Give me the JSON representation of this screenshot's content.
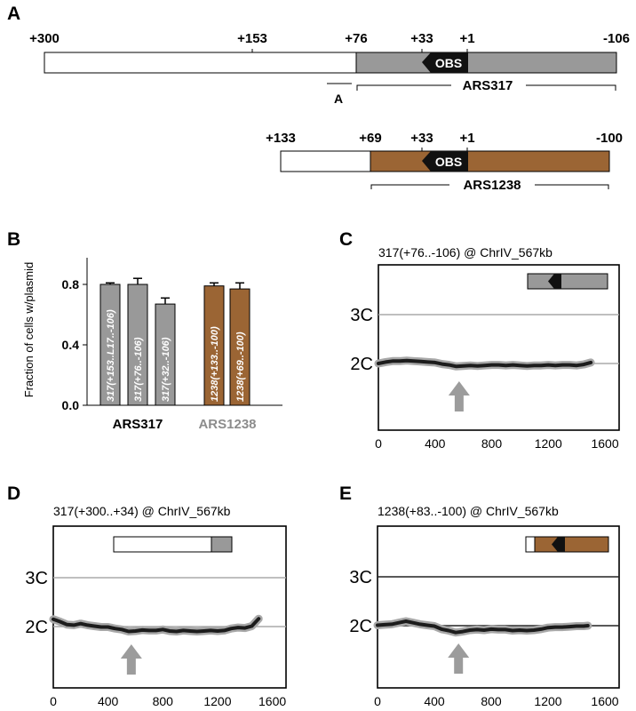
{
  "colors": {
    "grey": "#999999",
    "brown": "#9b6534",
    "dark": "#1a1a1a",
    "obs_fill": "#111111",
    "trace_halo": "#a8a8a8",
    "trace": "#1c1c1c",
    "arrow": "#9c9c9c",
    "hline_grey": "#aaaaaa",
    "hline_dark": "#222222",
    "ars1238_label": "#8c8c8c"
  },
  "panel_a": {
    "letter": "A",
    "map1": {
      "positions": [
        "+300",
        "+153",
        "+76",
        "+33",
        "+1",
        "-106"
      ],
      "obs_label": "OBS",
      "bracket_label": "ARS317",
      "a_label": "A"
    },
    "map2": {
      "positions": [
        "+133",
        "+69",
        "+33",
        "+1",
        "-100"
      ],
      "obs_label": "OBS",
      "bracket_label": "ARS1238"
    }
  },
  "chart_data": [
    {
      "panel": "B",
      "type": "bar",
      "ylabel": "Fraction of cells w/plasmid",
      "ylim": [
        0,
        1.0
      ],
      "yticks": [
        0.0,
        0.4,
        0.8
      ],
      "ytick_labels": [
        "0.0",
        "0.4",
        "0.8"
      ],
      "groups": [
        "ARS317",
        "ARS1238"
      ],
      "categories": [
        "317(+153..L17..-106)",
        "317(+76..-106)",
        "317(+32..-106)",
        "1238(+133..-100)",
        "1238(+69..-100)"
      ],
      "values": [
        0.8,
        0.8,
        0.67,
        0.79,
        0.77
      ],
      "errors": [
        0.01,
        0.04,
        0.04,
        0.02,
        0.04
      ],
      "bar_colors": [
        "#999999",
        "#999999",
        "#999999",
        "#9b6534",
        "#9b6534"
      ]
    },
    {
      "panel": "C",
      "type": "line",
      "title": "317(+76..-106) @ ChrIV_567kb",
      "xlim": [
        0,
        1700
      ],
      "xticks": [
        0,
        400,
        800,
        1200,
        1600
      ],
      "xtick_labels": [
        "0",
        "400",
        "800",
        "1200",
        "1600"
      ],
      "y_levels": [
        "3C",
        "2C"
      ],
      "arrow_x": 570,
      "series": [
        {
          "x": [
            0,
            50,
            100,
            150,
            200,
            250,
            300,
            350,
            400,
            450,
            500,
            550,
            600,
            650,
            700,
            750,
            800,
            850,
            900,
            950,
            1000,
            1050,
            1100,
            1150,
            1200,
            1250,
            1300,
            1350,
            1400,
            1450,
            1500
          ],
          "y": [
            2.0,
            2.03,
            2.05,
            2.05,
            2.06,
            2.05,
            2.04,
            2.03,
            2.02,
            1.99,
            1.97,
            1.94,
            1.95,
            1.96,
            1.95,
            1.96,
            1.97,
            1.97,
            1.96,
            1.97,
            1.96,
            1.95,
            1.96,
            1.96,
            1.97,
            1.96,
            1.97,
            1.97,
            1.96,
            1.98,
            2.02
          ]
        }
      ]
    },
    {
      "panel": "D",
      "type": "line",
      "title": "317(+300..+34) @ ChrIV_567kb",
      "xlim": [
        0,
        1700
      ],
      "xticks": [
        0,
        400,
        800,
        1200,
        1600
      ],
      "xtick_labels": [
        "0",
        "400",
        "800",
        "1200",
        "1600"
      ],
      "y_levels": [
        "3C",
        "2C"
      ],
      "arrow_x": 570,
      "series": [
        {
          "x": [
            0,
            50,
            100,
            150,
            200,
            250,
            300,
            350,
            400,
            450,
            500,
            550,
            600,
            650,
            700,
            750,
            800,
            850,
            900,
            950,
            1000,
            1050,
            1100,
            1150,
            1200,
            1250,
            1300,
            1350,
            1400,
            1450,
            1500
          ],
          "y": [
            2.15,
            2.1,
            2.04,
            2.03,
            2.06,
            2.03,
            2.01,
            1.99,
            1.99,
            1.96,
            1.94,
            1.9,
            1.91,
            1.93,
            1.92,
            1.92,
            1.94,
            1.91,
            1.9,
            1.92,
            1.91,
            1.9,
            1.91,
            1.92,
            1.91,
            1.92,
            1.96,
            1.98,
            1.97,
            2.01,
            2.16
          ]
        }
      ]
    },
    {
      "panel": "E",
      "type": "line",
      "title": "1238(+83..-100) @ ChrIV_567kb",
      "xlim": [
        0,
        1700
      ],
      "xticks": [
        0,
        400,
        800,
        1200,
        1600
      ],
      "xtick_labels": [
        "0",
        "400",
        "800",
        "1200",
        "1600"
      ],
      "y_levels": [
        "3C",
        "2C"
      ],
      "arrow_x": 570,
      "series": [
        {
          "x": [
            0,
            50,
            100,
            150,
            200,
            250,
            300,
            350,
            400,
            450,
            500,
            550,
            600,
            650,
            700,
            750,
            800,
            850,
            900,
            950,
            1000,
            1050,
            1100,
            1150,
            1200,
            1250,
            1300,
            1350,
            1400,
            1450,
            1480
          ],
          "y": [
            2.01,
            2.02,
            2.03,
            2.06,
            2.09,
            2.06,
            2.03,
            2.01,
            1.99,
            1.93,
            1.9,
            1.86,
            1.88,
            1.91,
            1.92,
            1.91,
            1.93,
            1.92,
            1.92,
            1.9,
            1.91,
            1.9,
            1.91,
            1.93,
            1.96,
            1.97,
            1.97,
            1.98,
            1.99,
            1.99,
            2.0
          ]
        }
      ]
    }
  ]
}
